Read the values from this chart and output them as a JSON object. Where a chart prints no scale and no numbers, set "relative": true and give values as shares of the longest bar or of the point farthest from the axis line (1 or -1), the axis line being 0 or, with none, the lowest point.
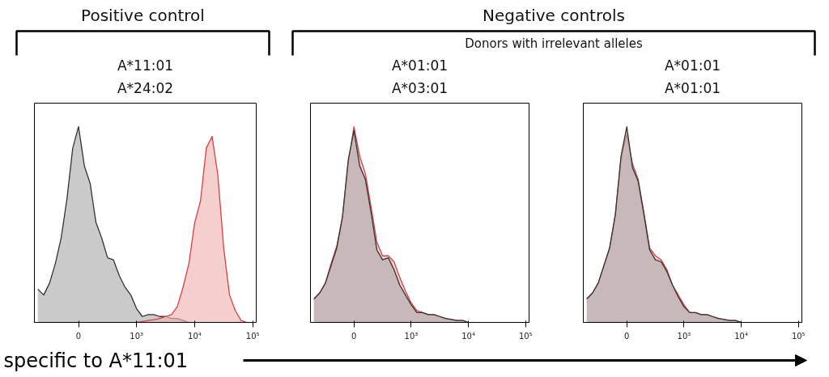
{
  "chart_data": [
    {
      "type": "area",
      "title": "A*11:01",
      "subtitle": "A*24:02",
      "annotations": [
        "Positive control"
      ],
      "xlabel": "specific to A*11:01",
      "relative": true,
      "categories": [
        null,
        null,
        null,
        null,
        null,
        null,
        null,
        "0",
        null,
        null,
        null,
        null,
        null,
        null,
        null,
        null,
        null,
        "10³",
        null,
        null,
        null,
        null,
        null,
        null,
        null,
        null,
        null,
        "10⁴",
        null,
        null,
        null,
        null,
        null,
        null,
        null,
        null,
        null,
        "10⁵"
      ],
      "series": [
        {
          "color": "#333333",
          "values": [
            0.17,
            0.14,
            0.2,
            0.3,
            0.43,
            0.63,
            0.89,
            1.0,
            0.8,
            0.71,
            0.51,
            0.43,
            0.33,
            0.32,
            0.24,
            0.18,
            0.14,
            0.07,
            0.03,
            0.04,
            0.04,
            0.03,
            0.03,
            0.02,
            0.02,
            0.01,
            0.0,
            null,
            null,
            null,
            null,
            null,
            null,
            null,
            null,
            null,
            null,
            null
          ]
        },
        {
          "color": "#d94040",
          "values": [
            null,
            null,
            null,
            null,
            null,
            null,
            null,
            null,
            null,
            null,
            null,
            null,
            null,
            null,
            null,
            null,
            null,
            0.0,
            0.005,
            0.01,
            0.014,
            0.02,
            0.03,
            0.04,
            0.08,
            0.18,
            0.3,
            0.51,
            0.62,
            0.89,
            0.95,
            0.75,
            0.38,
            0.14,
            0.06,
            0.01,
            0.0,
            null
          ]
        }
      ]
    },
    {
      "type": "area",
      "title": "A*01:01",
      "subtitle": "A*03:01",
      "annotations": [
        "Negative controls",
        "Donors with irrelevant alleles"
      ],
      "relative": true,
      "categories": [
        null,
        null,
        null,
        null,
        null,
        null,
        null,
        "0",
        null,
        null,
        null,
        null,
        null,
        null,
        null,
        null,
        null,
        "10³",
        null,
        null,
        null,
        null,
        null,
        null,
        null,
        null,
        null,
        "10⁴",
        null,
        null,
        null,
        null,
        null,
        null,
        null,
        null,
        null,
        "10⁵"
      ],
      "series": [
        {
          "color": "#d94040",
          "values": [
            0.12,
            0.15,
            0.2,
            0.3,
            0.39,
            0.54,
            0.81,
            1.0,
            0.85,
            0.76,
            0.59,
            0.41,
            0.34,
            0.34,
            0.31,
            0.23,
            0.16,
            0.1,
            0.06,
            0.05,
            0.04,
            0.04,
            0.03,
            0.02,
            0.015,
            0.01,
            0.01,
            0.0,
            null,
            null,
            null,
            null,
            null,
            null,
            null,
            null,
            null,
            null
          ]
        },
        {
          "color": "#333333",
          "values": [
            0.12,
            0.15,
            0.2,
            0.29,
            0.38,
            0.54,
            0.83,
            0.98,
            0.8,
            0.73,
            0.56,
            0.37,
            0.32,
            0.33,
            0.27,
            0.19,
            0.14,
            0.09,
            0.05,
            0.05,
            0.04,
            0.04,
            0.03,
            0.02,
            0.015,
            0.01,
            0.01,
            0.0,
            null,
            null,
            null,
            null,
            null,
            null,
            null,
            null,
            null,
            null
          ]
        }
      ]
    },
    {
      "type": "area",
      "title": "A*01:01",
      "subtitle": "A*01:01",
      "relative": true,
      "categories": [
        null,
        null,
        null,
        null,
        null,
        null,
        null,
        "0",
        null,
        null,
        null,
        null,
        null,
        null,
        null,
        null,
        null,
        "10³",
        null,
        null,
        null,
        null,
        null,
        null,
        null,
        null,
        null,
        "10⁴",
        null,
        null,
        null,
        null,
        null,
        null,
        null,
        null,
        null,
        "10⁵"
      ],
      "series": [
        {
          "color": "#d94040",
          "values": [
            0.12,
            0.15,
            0.2,
            0.29,
            0.38,
            0.55,
            0.84,
            0.96,
            0.81,
            0.73,
            0.56,
            0.38,
            0.34,
            0.32,
            0.27,
            0.19,
            0.14,
            0.09,
            0.05,
            0.05,
            0.04,
            0.04,
            0.03,
            0.02,
            0.015,
            0.01,
            0.01,
            0.0,
            null,
            null,
            null,
            null,
            null,
            null,
            null,
            null,
            null,
            null
          ]
        },
        {
          "color": "#333333",
          "values": [
            0.12,
            0.15,
            0.2,
            0.29,
            0.38,
            0.55,
            0.85,
            1.0,
            0.79,
            0.72,
            0.55,
            0.37,
            0.32,
            0.31,
            0.26,
            0.19,
            0.13,
            0.08,
            0.05,
            0.05,
            0.04,
            0.04,
            0.03,
            0.02,
            0.015,
            0.01,
            0.01,
            0.0,
            null,
            null,
            null,
            null,
            null,
            null,
            null,
            null,
            null,
            null
          ]
        }
      ]
    }
  ]
}
